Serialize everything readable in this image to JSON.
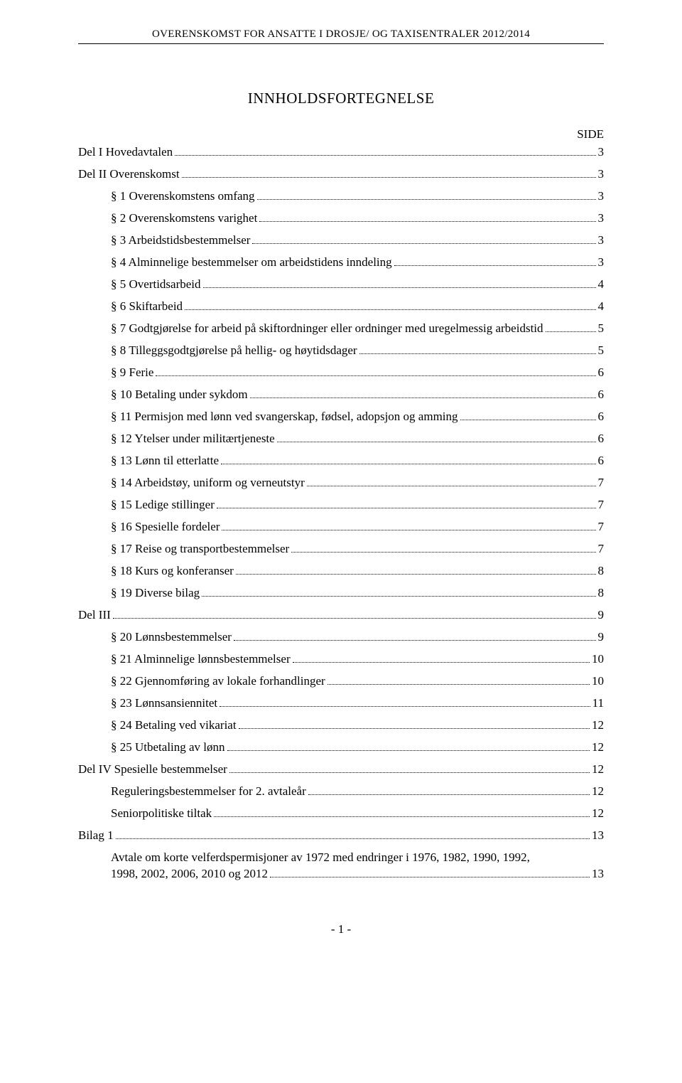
{
  "header": "OVERENSKOMST FOR ANSATTE I DROSJE/ OG TAXISENTRALER 2012/2014",
  "toc_title": "INNHOLDSFORTEGNELSE",
  "side_label": "SIDE",
  "entries": [
    {
      "label": "Del I Hovedavtalen",
      "page": "3",
      "indent": 0
    },
    {
      "label": "Del II Overenskomst",
      "page": "3",
      "indent": 0
    },
    {
      "label": "§ 1 Overenskomstens omfang",
      "page": "3",
      "indent": 1
    },
    {
      "label": "§ 2 Overenskomstens varighet",
      "page": "3",
      "indent": 1
    },
    {
      "label": "§ 3 Arbeidstidsbestemmelser",
      "page": "3",
      "indent": 1
    },
    {
      "label": "§ 4 Alminnelige bestemmelser om arbeidstidens inndeling",
      "page": "3",
      "indent": 1
    },
    {
      "label": "§ 5 Overtidsarbeid",
      "page": "4",
      "indent": 1
    },
    {
      "label": "§ 6 Skiftarbeid",
      "page": "4",
      "indent": 1
    },
    {
      "label": "§ 7 Godtgjørelse for arbeid på skiftordninger eller ordninger med uregelmessig arbeidstid",
      "page": "5",
      "indent": 1
    },
    {
      "label": "§ 8 Tilleggsgodtgjørelse på hellig- og høytidsdager",
      "page": "5",
      "indent": 1
    },
    {
      "label": "§ 9 Ferie",
      "page": "6",
      "indent": 1
    },
    {
      "label": "§ 10 Betaling under sykdom",
      "page": "6",
      "indent": 1
    },
    {
      "label": "§ 11 Permisjon med lønn ved svangerskap, fødsel,  adopsjon og amming",
      "page": "6",
      "indent": 1
    },
    {
      "label": "§ 12 Ytelser under militærtjeneste",
      "page": "6",
      "indent": 1
    },
    {
      "label": "§ 13 Lønn til etterlatte",
      "page": "6",
      "indent": 1
    },
    {
      "label": "§ 14 Arbeidstøy, uniform og verneutstyr",
      "page": "7",
      "indent": 1
    },
    {
      "label": "§ 15 Ledige stillinger",
      "page": "7",
      "indent": 1
    },
    {
      "label": "§ 16 Spesielle fordeler",
      "page": "7",
      "indent": 1
    },
    {
      "label": "§ 17 Reise og transportbestemmelser",
      "page": "7",
      "indent": 1
    },
    {
      "label": "§ 18 Kurs og konferanser",
      "page": "8",
      "indent": 1
    },
    {
      "label": "§ 19 Diverse bilag",
      "page": "8",
      "indent": 1
    },
    {
      "label": "Del III",
      "page": "9",
      "indent": 0
    },
    {
      "label": "§ 20 Lønnsbestemmelser",
      "page": "9",
      "indent": 1
    },
    {
      "label": "§ 21 Alminnelige lønnsbestemmelser",
      "page": "10",
      "indent": 1
    },
    {
      "label": "§ 22 Gjennomføring av lokale forhandlinger",
      "page": "10",
      "indent": 1
    },
    {
      "label": "§ 23 Lønnsansiennitet",
      "page": "11",
      "indent": 1
    },
    {
      "label": "§ 24 Betaling ved vikariat",
      "page": "12",
      "indent": 1
    },
    {
      "label": "§ 25 Utbetaling av lønn",
      "page": "12",
      "indent": 1
    },
    {
      "label": "Del IV Spesielle bestemmelser",
      "page": "12",
      "indent": 0
    },
    {
      "label": "Reguleringsbestemmelser for 2. avtaleår",
      "page": "12",
      "indent": 1
    },
    {
      "label": "Seniorpolitiske tiltak",
      "page": "12",
      "indent": 1
    },
    {
      "label": "Bilag 1",
      "page": "13",
      "indent": 0
    },
    {
      "label": "Avtale om korte velferdspermisjoner av 1972 med endringer i  1976, 1982, 1990, 1992, 1998, 2002, 2006, 2010 og 2012",
      "page": "13",
      "indent": 1,
      "wrap": true
    }
  ],
  "footer": "- 1 -"
}
